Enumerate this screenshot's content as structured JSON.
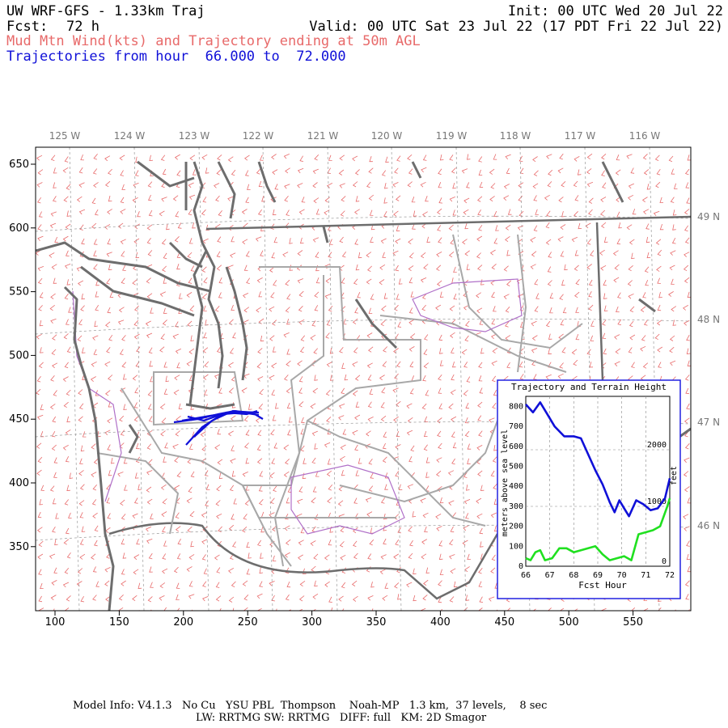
{
  "header": {
    "title": "UW WRF-GFS - 1.33km Traj",
    "init": "Init: 00 UTC Wed 20 Jul 22",
    "fcst_label": "Fcst:",
    "fcst_value": "72 h",
    "valid": "Valid: 00 UTC Sat 23 Jul 22 (17 PDT Fri 22 Jul 22)",
    "subtitle": "Mud Mtn Wind(kts) and Trajectory ending at 50m AGL",
    "traj_range": "Trajectories from hour  66.000 to  72.000"
  },
  "map": {
    "x_ticks": [
      "100",
      "150",
      "200",
      "250",
      "300",
      "350",
      "400",
      "450",
      "500",
      "550"
    ],
    "y_ticks": [
      "650",
      "600",
      "550",
      "500",
      "450",
      "400",
      "350"
    ],
    "lon_labels": [
      "125 W",
      "124 W",
      "123 W",
      "122 W",
      "121 W",
      "120 W",
      "119 W",
      "118 W",
      "117 W",
      "116 W"
    ],
    "lat_labels": [
      "49 N",
      "48 N",
      "47 N",
      "46 N"
    ],
    "colors": {
      "coast": "#6d6d6d",
      "border": "#a8a8a8",
      "barb": "#e86a6a",
      "trajectory": "#1010d8",
      "terrain": "#20e020"
    }
  },
  "inset": {
    "title": "Trajectory and Terrain Height",
    "y_left_ticks": [
      "800",
      "700",
      "600",
      "500",
      "400",
      "300",
      "200",
      "100",
      "0"
    ],
    "y_right_ticks": [
      "2000",
      "1000",
      "0"
    ],
    "x_ticks": [
      "66",
      "67",
      "68",
      "69",
      "70",
      "71",
      "72"
    ],
    "xlabel": "Fcst Hour",
    "ylabel_left": "meters above sea level",
    "ylabel_right": "feet"
  },
  "chart_data": {
    "type": "line",
    "title": "Trajectory and Terrain Height",
    "xlabel": "Fcst Hour",
    "ylabel": "meters above sea level",
    "xlim": [
      66,
      72
    ],
    "ylim": [
      0,
      850
    ],
    "series": [
      {
        "color": "#1010d8",
        "x": [
          66.0,
          66.3,
          66.6,
          66.9,
          67.2,
          67.6,
          68.0,
          68.3,
          68.6,
          68.9,
          69.2,
          69.5,
          69.7,
          69.9,
          70.1,
          70.3,
          70.6,
          70.9,
          71.2,
          71.5,
          71.8,
          72.0
        ],
        "y": [
          810,
          770,
          820,
          760,
          700,
          650,
          650,
          640,
          560,
          480,
          410,
          320,
          270,
          330,
          290,
          250,
          330,
          310,
          280,
          290,
          340,
          440
        ]
      },
      {
        "color": "#20e020",
        "x": [
          66.0,
          66.2,
          66.4,
          66.6,
          66.8,
          67.1,
          67.4,
          67.7,
          68.0,
          68.3,
          68.6,
          68.9,
          69.2,
          69.5,
          69.8,
          70.1,
          70.4,
          70.7,
          71.0,
          71.3,
          71.6,
          71.9,
          72.0
        ],
        "y": [
          40,
          30,
          70,
          80,
          30,
          40,
          90,
          90,
          70,
          80,
          90,
          100,
          60,
          30,
          40,
          50,
          30,
          160,
          170,
          180,
          200,
          300,
          340
        ]
      }
    ]
  },
  "footer": {
    "line1": "Model Info: V4.1.3   No Cu   YSU PBL  Thompson    Noah-MP   1.3 km,  37 levels,    8 sec",
    "line2": "LW: RRTMG SW: RRTMG   DIFF: full   KM: 2D Smagor"
  }
}
